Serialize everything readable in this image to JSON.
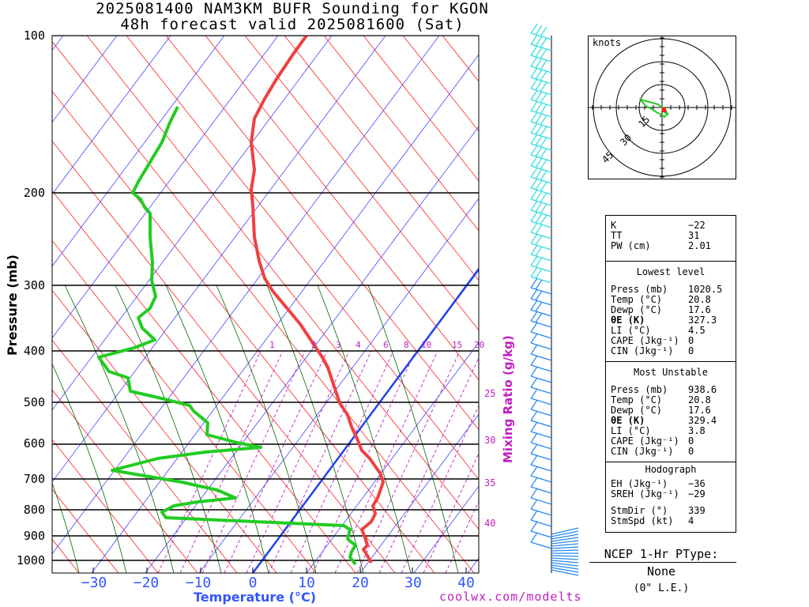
{
  "title": {
    "line1": "2025081400 NAM3KM BUFR Sounding for KGON",
    "line2": "48h forecast valid 2025081600 (Sat)"
  },
  "axes": {
    "ylabel": "Pressure (mb)",
    "xlabel": "Temperature (°C)",
    "pressure_ticks": [
      "100",
      "200",
      "300",
      "400",
      "500",
      "600",
      "700",
      "800",
      "900",
      "1000"
    ],
    "temp_ticks": [
      "−30",
      "−20",
      "−10",
      "0",
      "10",
      "20",
      "30",
      "40"
    ],
    "mixing_label": "Mixing Ratio (g/kg)",
    "mixing_top": [
      "1",
      "2",
      "3",
      "4",
      "6",
      "8",
      "10",
      "15",
      "20"
    ],
    "mixing_side": [
      "25",
      "30",
      "35",
      "40"
    ]
  },
  "hodograph": {
    "label": "knots",
    "rings": [
      "15",
      "30",
      "45"
    ]
  },
  "indices": {
    "k_label": "K",
    "k": "−22",
    "tt_label": "TT",
    "tt": "31",
    "pw_label": "PW (cm)",
    "pw": "2.01"
  },
  "lowest": {
    "header": "Lowest level",
    "rows": [
      {
        "label": "Press (mb)",
        "value": "1020.5"
      },
      {
        "label": "Temp (°C)",
        "value": "20.8"
      },
      {
        "label": "Dewp (°C)",
        "value": "17.6"
      },
      {
        "label": "θE (K)",
        "value": "327.3"
      },
      {
        "label": "LI (°C)",
        "value": "4.5"
      },
      {
        "label": "CAPE (Jkg⁻¹)",
        "value": "0"
      },
      {
        "label": "CIN (Jkg⁻¹)",
        "value": "0"
      }
    ]
  },
  "most_unstable": {
    "header": "Most Unstable",
    "rows": [
      {
        "label": "Press (mb)",
        "value": "938.6"
      },
      {
        "label": "Temp (°C)",
        "value": "20.8"
      },
      {
        "label": "Dewp (°C)",
        "value": "17.6"
      },
      {
        "label": "θE (K)",
        "value": "329.4"
      },
      {
        "label": "LI (°C)",
        "value": "3.8"
      },
      {
        "label": "CAPE (Jkg⁻¹)",
        "value": "0"
      },
      {
        "label": "CIN (Jkg⁻¹)",
        "value": "0"
      }
    ]
  },
  "hodo_stats": {
    "header": "Hodograph",
    "rows": [
      {
        "label": "EH (Jkg⁻¹)",
        "value": "−36"
      },
      {
        "label": "SREH (Jkg⁻¹)",
        "value": "−29"
      },
      {
        "label": "StmDir (°)",
        "value": "339"
      },
      {
        "label": "StmSpd (kt)",
        "value": "4"
      }
    ]
  },
  "ptype": {
    "header": "NCEP 1-Hr PType:",
    "value": "None",
    "sub": "(0\" L.E.)"
  },
  "credit": "coolwx.com/modelts",
  "colors": {
    "temperature": "#f04040",
    "dewpoint": "#22cc22",
    "isotherm": "#4444ff",
    "dry_adiabat": "#ff2020",
    "moist_adiabat": "#006600",
    "mixing": "#c020c0",
    "wind_upper": "#33dddd",
    "wind_lower": "#2288ee"
  }
}
